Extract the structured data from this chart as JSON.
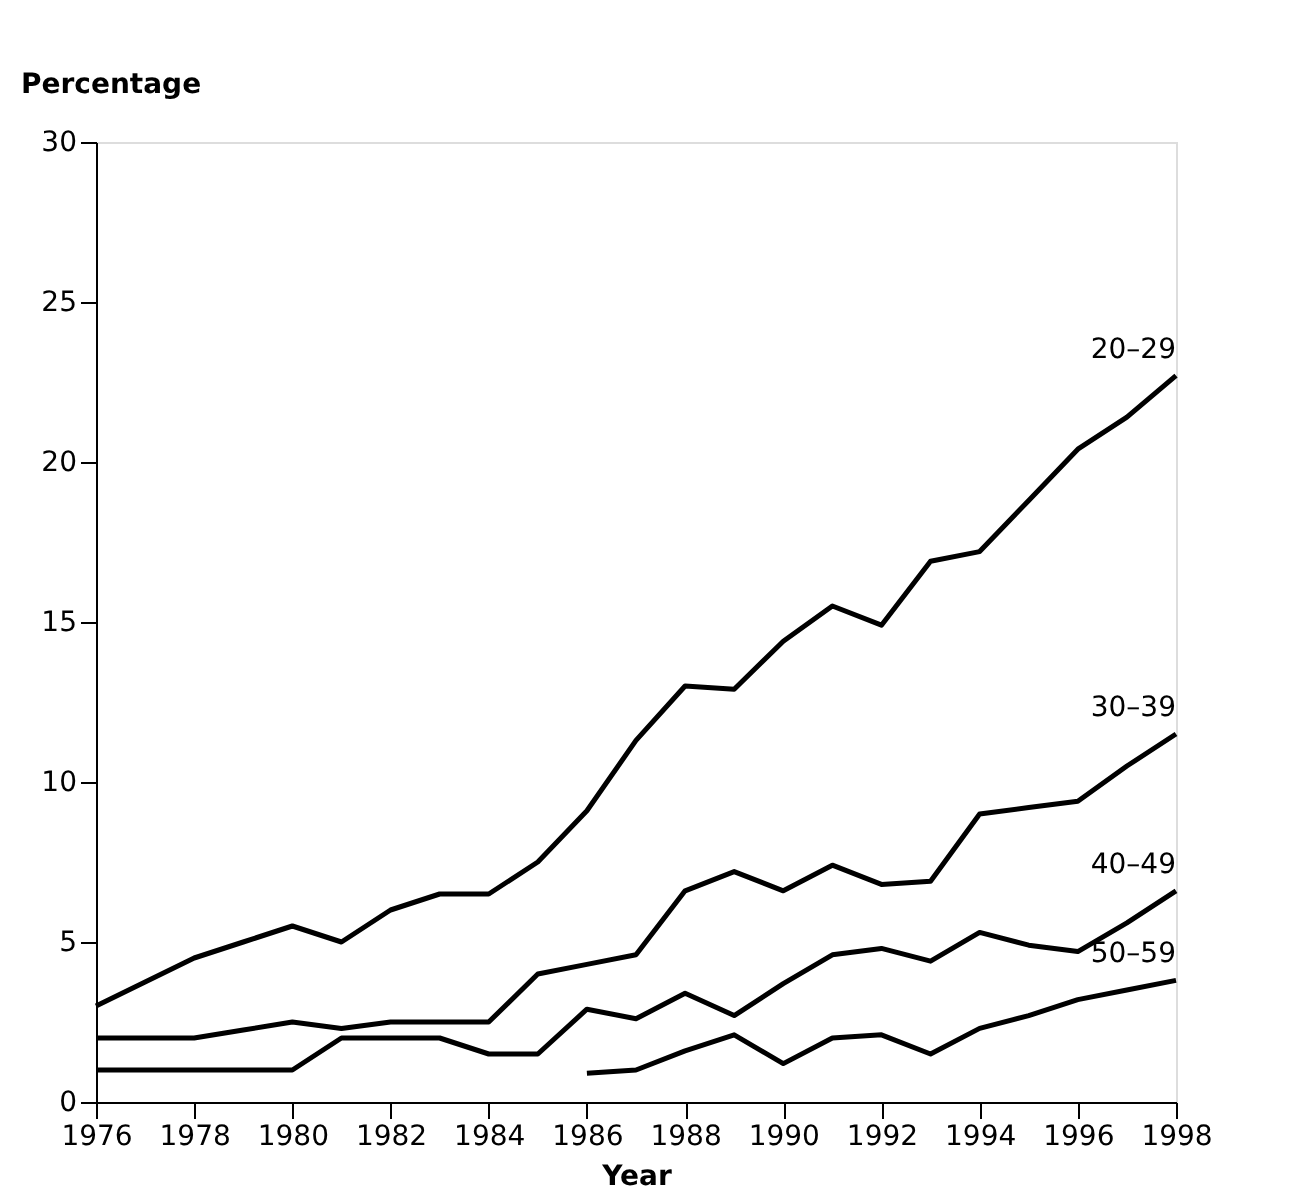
{
  "chart_data": {
    "type": "line",
    "xlabel": "Year",
    "ylabel": "Percentage",
    "x": [
      1976,
      1977,
      1978,
      1979,
      1980,
      1981,
      1982,
      1983,
      1984,
      1985,
      1986,
      1987,
      1988,
      1989,
      1990,
      1991,
      1992,
      1993,
      1994,
      1995,
      1996,
      1997,
      1998
    ],
    "series": [
      {
        "name": "20–29",
        "color": "#000000",
        "values": [
          3,
          3.75,
          4.5,
          5,
          5.5,
          5,
          6,
          6.5,
          6.5,
          7.5,
          9.1,
          11.3,
          13,
          12.9,
          14.4,
          15.5,
          14.9,
          16.9,
          17.2,
          18.8,
          20.4,
          21.4,
          22.7
        ]
      },
      {
        "name": "30–39",
        "color": "#000000",
        "values": [
          2,
          2,
          2,
          2.25,
          2.5,
          2.3,
          2.5,
          2.5,
          2.5,
          4,
          4.3,
          4.6,
          6.6,
          7.2,
          6.6,
          7.4,
          6.8,
          6.9,
          9,
          9.2,
          9.4,
          10.5,
          11.5
        ]
      },
      {
        "name": "40–49",
        "color": "#000000",
        "values": [
          1,
          1,
          1,
          1,
          1,
          2,
          2,
          2,
          1.5,
          1.5,
          2.9,
          2.6,
          3.4,
          2.7,
          3.7,
          4.6,
          4.8,
          4.4,
          5.3,
          4.9,
          4.7,
          5.6,
          6.6
        ]
      },
      {
        "name": "50–59",
        "color": "#000000",
        "values": [
          null,
          null,
          null,
          null,
          null,
          null,
          null,
          null,
          null,
          null,
          0.9,
          1.0,
          1.6,
          2.1,
          1.2,
          2.0,
          2.1,
          1.5,
          2.3,
          2.7,
          3.2,
          3.5,
          3.8
        ]
      }
    ],
    "xlim": [
      1976,
      1998
    ],
    "xticks": [
      1976,
      1978,
      1980,
      1982,
      1984,
      1986,
      1988,
      1990,
      1992,
      1994,
      1996,
      1998
    ],
    "ylim": [
      0,
      30
    ],
    "yticks": [
      0,
      5,
      10,
      15,
      20,
      25,
      30
    ],
    "grid": false,
    "legend": false,
    "marker": "none",
    "line_style": "solid"
  }
}
